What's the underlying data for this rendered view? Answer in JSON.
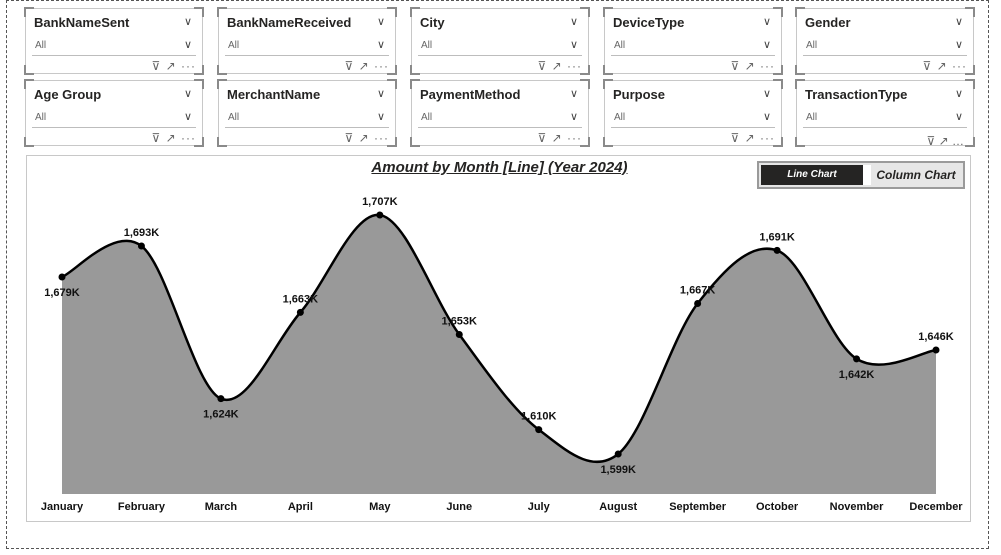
{
  "slicers": [
    {
      "title": "BankNameSent",
      "value": "All"
    },
    {
      "title": "BankNameReceived",
      "value": "All"
    },
    {
      "title": "City",
      "value": "All"
    },
    {
      "title": "DeviceType",
      "value": "All"
    },
    {
      "title": "Gender",
      "value": "All"
    },
    {
      "title": "Age Group",
      "value": "All"
    },
    {
      "title": "MerchantName",
      "value": "All"
    },
    {
      "title": "PaymentMethod",
      "value": "All"
    },
    {
      "title": "Purpose",
      "value": "All"
    },
    {
      "title": "TransactionType",
      "value": "All"
    }
  ],
  "icons": {
    "filter": "filter-icon",
    "focus": "focus-mode-icon",
    "more": "more-options-icon",
    "chevron": "chevron-down-icon"
  },
  "toggle": {
    "line_label": "Line Chart",
    "column_label": "Column Chart",
    "selected": "Line Chart"
  },
  "chart_data": {
    "type": "area",
    "title": "Amount by Month [Line] (Year 2024)",
    "categories": [
      "January",
      "February",
      "March",
      "April",
      "May",
      "June",
      "July",
      "August",
      "September",
      "October",
      "November",
      "December"
    ],
    "values": [
      1679,
      1693,
      1624,
      1663,
      1707,
      1653,
      1610,
      1599,
      1667,
      1691,
      1642,
      1646
    ],
    "data_labels": [
      "1,679K",
      "1,693K",
      "1,624K",
      "1,663K",
      "1,707K",
      "1,653K",
      "1,610K",
      "1,599K",
      "1,667K",
      "1,691K",
      "1,642K",
      "1,646K"
    ],
    "fill_color": "#999999",
    "line_color": "#000000",
    "grid": false,
    "legend": "none"
  }
}
